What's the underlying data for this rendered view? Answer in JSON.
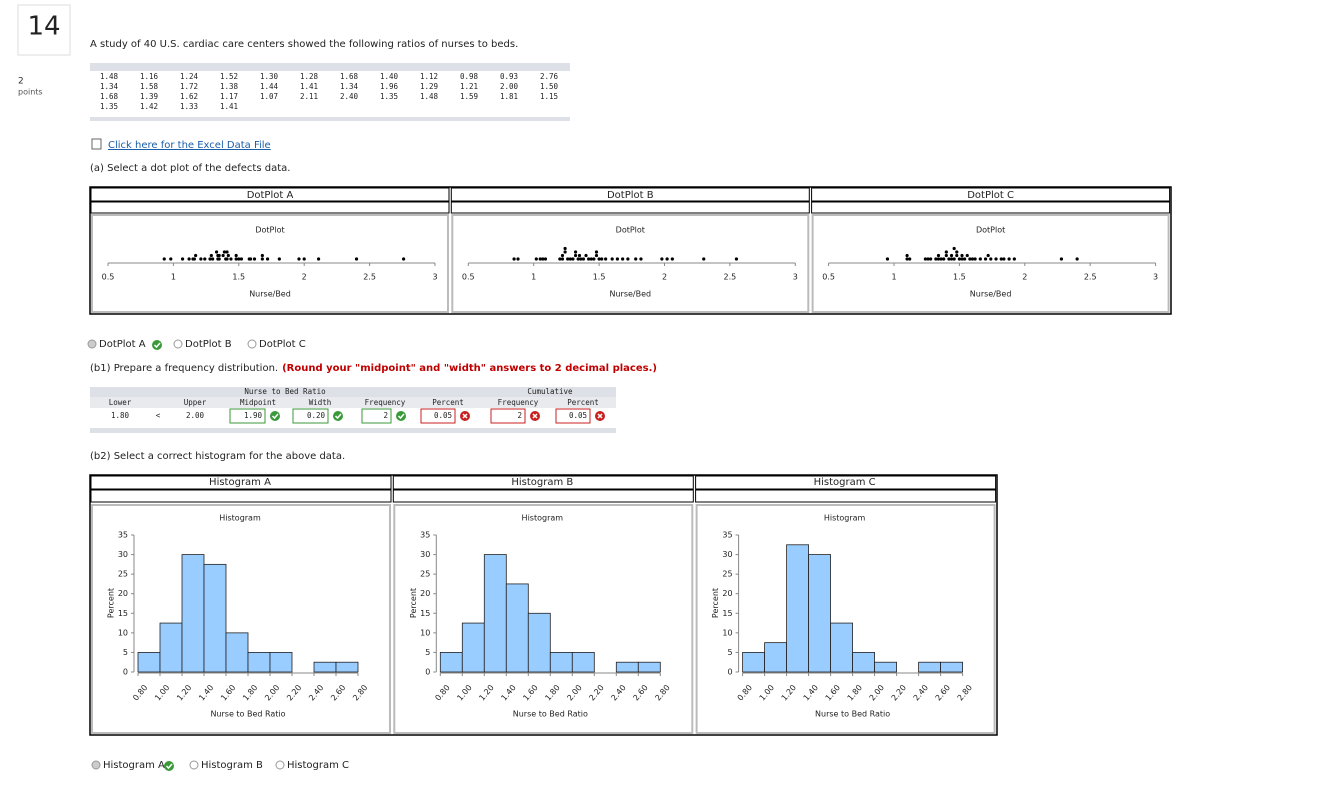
{
  "question": {
    "number": "14",
    "points": "2",
    "points_label": "points"
  },
  "prompt": "A study of 40 U.S. cardiac care centers showed the following ratios of nurses to beds.",
  "data_table": {
    "rows": [
      [
        "1.48",
        "1.16",
        "1.24",
        "1.52",
        "1.30",
        "1.28",
        "1.68",
        "1.40",
        "1.12",
        "0.98",
        "0.93",
        "2.76"
      ],
      [
        "1.34",
        "1.58",
        "1.72",
        "1.38",
        "1.44",
        "1.41",
        "1.34",
        "1.96",
        "1.29",
        "1.21",
        "2.00",
        "1.50"
      ],
      [
        "1.68",
        "1.39",
        "1.62",
        "1.17",
        "1.07",
        "2.11",
        "2.40",
        "1.35",
        "1.48",
        "1.59",
        "1.81",
        "1.15"
      ],
      [
        "1.35",
        "1.42",
        "1.33",
        "1.41"
      ]
    ]
  },
  "link": "Click here for the Excel Data File",
  "part_a": {
    "question": "(a) Select a dot plot of the defects data.",
    "options": [
      "DotPlot A",
      "DotPlot B",
      "DotPlot C"
    ]
  },
  "dotplots": [
    {
      "header": "DotPlot A",
      "title": "DotPlot",
      "xlabel": "Nurse/Bed",
      "xlim": [
        0.5,
        3
      ],
      "xticks": [
        0.5,
        1,
        1.5,
        2,
        2.5,
        3
      ],
      "values": [
        1.48,
        1.16,
        1.24,
        1.52,
        1.3,
        1.28,
        1.68,
        1.4,
        1.12,
        0.98,
        0.93,
        2.76,
        1.34,
        1.58,
        1.72,
        1.38,
        1.44,
        1.41,
        1.34,
        1.96,
        1.29,
        1.21,
        2.0,
        1.5,
        1.68,
        1.39,
        1.62,
        1.17,
        1.07,
        2.11,
        2.4,
        1.35,
        1.48,
        1.59,
        1.81,
        1.15,
        1.35,
        1.42,
        1.33,
        1.41
      ]
    },
    {
      "header": "DotPlot B",
      "title": "DotPlot",
      "xlabel": "Nurse/Bed",
      "xlim": [
        0.5,
        3
      ],
      "xticks": [
        0.5,
        1,
        1.5,
        2,
        2.5,
        3
      ],
      "values": [
        0.85,
        0.88,
        1.02,
        1.05,
        1.07,
        1.09,
        1.2,
        1.22,
        1.22,
        1.24,
        1.24,
        1.26,
        1.28,
        1.3,
        1.32,
        1.32,
        1.34,
        1.36,
        1.38,
        1.4,
        1.42,
        1.44,
        1.46,
        1.48,
        1.48,
        1.5,
        1.52,
        1.55,
        1.6,
        1.64,
        1.68,
        1.72,
        1.78,
        1.82,
        1.98,
        2.02,
        2.06,
        2.3,
        2.55,
        1.35
      ]
    },
    {
      "header": "DotPlot C",
      "title": "DotPlot",
      "xlabel": "Nurse/Bed",
      "xlim": [
        0.5,
        3
      ],
      "xticks": [
        0.5,
        1,
        1.5,
        2,
        2.5,
        3
      ],
      "values": [
        0.95,
        1.1,
        1.1,
        1.12,
        1.24,
        1.26,
        1.28,
        1.32,
        1.34,
        1.34,
        1.36,
        1.38,
        1.4,
        1.4,
        1.42,
        1.44,
        1.44,
        1.46,
        1.48,
        1.48,
        1.5,
        1.52,
        1.52,
        1.54,
        1.56,
        1.58,
        1.6,
        1.62,
        1.66,
        1.7,
        1.72,
        1.74,
        1.78,
        1.82,
        1.84,
        1.88,
        1.92,
        2.28,
        2.4,
        1.46
      ]
    }
  ],
  "part_b1": {
    "question": "(b1) Prepare a frequency distribution.",
    "note": "(Round your \"midpoint\" and \"width\" answers to 2 decimal places.)",
    "table": {
      "group": "Nurse to Bed Ratio",
      "cumulative": "Cumulative",
      "columns": [
        "Lower",
        "Upper",
        "Midpoint",
        "Width",
        "Frequency",
        "Percent",
        "Frequency",
        "Percent"
      ],
      "row": {
        "lower": "1.80",
        "sign": "<",
        "upper": "2.00",
        "midpoint": "1.90",
        "width": "0.20",
        "frequency": "2",
        "percent": "0.05",
        "cum_frequency": "2",
        "cum_percent": "0.05"
      }
    }
  },
  "part_b2": {
    "question": "(b2) Select a correct histogram for the above data.",
    "options": [
      "Histogram A",
      "Histogram B",
      "Histogram C"
    ]
  },
  "histograms": [
    {
      "header": "Histogram A",
      "title": "Histogram",
      "xlabel": "Nurse to Bed Ratio",
      "ylabel": "Percent",
      "color": "#99ccff",
      "bins": [
        0.8,
        1.0,
        1.2,
        1.4,
        1.6,
        1.8,
        2.0,
        2.2,
        2.4,
        2.6,
        2.8
      ],
      "values": [
        5,
        12.5,
        30,
        27.5,
        10,
        5,
        5,
        0,
        2.5,
        2.5
      ],
      "xlim": [
        0.8,
        2.8
      ],
      "ylim": [
        0,
        35
      ],
      "yticks": [
        0,
        5,
        10,
        15,
        20,
        25,
        30,
        35
      ],
      "xticks": [
        {
          "value": 0.8,
          "label": "0.80"
        },
        {
          "value": 1.0,
          "label": "1.00"
        },
        {
          "value": 1.2,
          "label": "1.20"
        },
        {
          "value": 1.4,
          "label": "1.40"
        },
        {
          "value": 1.6,
          "label": "1.60"
        },
        {
          "value": 1.8,
          "label": "1.80"
        },
        {
          "value": 2.0,
          "label": "2.00"
        },
        {
          "value": 2.2,
          "label": "2.20"
        },
        {
          "value": 2.4,
          "label": "2.40"
        },
        {
          "value": 2.6,
          "label": "2.60"
        },
        {
          "value": 2.8,
          "label": "2.80"
        }
      ]
    },
    {
      "header": "Histogram B",
      "title": "Histogram",
      "xlabel": "Nurse to Bed Ratio",
      "ylabel": "Percent",
      "color": "#99ccff",
      "bins": [
        0.8,
        1.0,
        1.2,
        1.4,
        1.6,
        1.8,
        2.0,
        2.2,
        2.4,
        2.6,
        2.8
      ],
      "values": [
        5,
        12.5,
        30,
        22.5,
        15,
        5,
        5,
        0,
        2.5,
        2.5
      ],
      "xlim": [
        0.8,
        2.8
      ],
      "ylim": [
        0,
        35
      ],
      "yticks": [
        0,
        5,
        10,
        15,
        20,
        25,
        30,
        35
      ],
      "xticks": [
        {
          "value": 0.8,
          "label": "0.80"
        },
        {
          "value": 1.0,
          "label": "1.00"
        },
        {
          "value": 1.2,
          "label": "1.20"
        },
        {
          "value": 1.4,
          "label": "1.40"
        },
        {
          "value": 1.6,
          "label": "1.60"
        },
        {
          "value": 1.8,
          "label": "1.80"
        },
        {
          "value": 2.0,
          "label": "2.00"
        },
        {
          "value": 2.2,
          "label": "2.20"
        },
        {
          "value": 2.4,
          "label": "2.40"
        },
        {
          "value": 2.6,
          "label": "2.60"
        },
        {
          "value": 2.8,
          "label": "2.80"
        }
      ]
    },
    {
      "header": "Histogram C",
      "title": "Histogram",
      "xlabel": "Nurse to Bed Ratio",
      "ylabel": "Percent",
      "color": "#99ccff",
      "bins": [
        0.8,
        1.0,
        1.2,
        1.4,
        1.6,
        1.8,
        2.0,
        2.2,
        2.4,
        2.6,
        2.8
      ],
      "values": [
        5,
        7.5,
        32.5,
        30,
        12.5,
        5,
        2.5,
        0,
        2.5,
        2.5
      ],
      "xlim": [
        0.8,
        2.8
      ],
      "ylim": [
        0,
        35
      ],
      "yticks": [
        0,
        5,
        10,
        15,
        20,
        25,
        30,
        35
      ],
      "xticks": [
        {
          "value": 0.8,
          "label": "0.80"
        },
        {
          "value": 1.0,
          "label": "1.00"
        },
        {
          "value": 1.2,
          "label": "1.20"
        },
        {
          "value": 1.4,
          "label": "1.40"
        },
        {
          "value": 1.6,
          "label": "1.60"
        },
        {
          "value": 1.8,
          "label": "1.80"
        },
        {
          "value": 2.0,
          "label": "2.00"
        },
        {
          "value": 2.2,
          "label": "2.20"
        },
        {
          "value": 2.4,
          "label": "2.40"
        },
        {
          "value": 2.6,
          "label": "2.60"
        },
        {
          "value": 2.8,
          "label": "2.80"
        }
      ]
    }
  ]
}
